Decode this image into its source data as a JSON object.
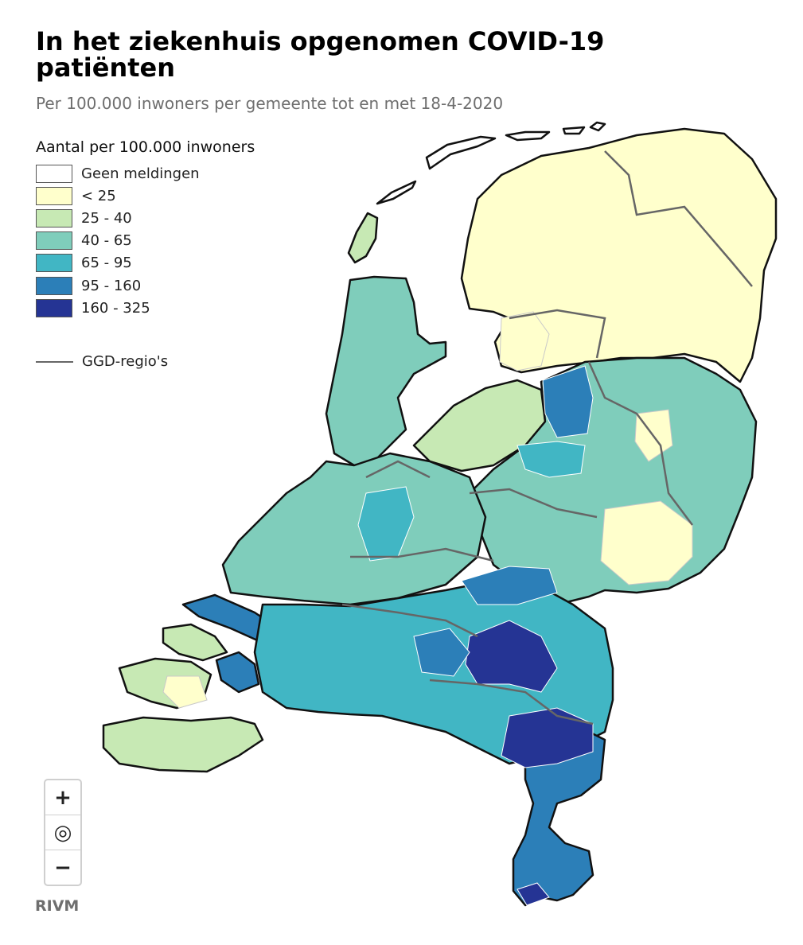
{
  "header": {
    "title": "In het ziekenhuis opgenomen COVID-19 patiënten",
    "subtitle": "Per 100.000 inwoners per gemeente tot en met 18-4-2020"
  },
  "legend": {
    "title": "Aantal per 100.000 inwoners",
    "items": [
      {
        "label": "Geen meldingen",
        "color": "#ffffff"
      },
      {
        "label": "< 25",
        "color": "#ffffcc"
      },
      {
        "label": "25 - 40",
        "color": "#c7e9b4"
      },
      {
        "label": "40 - 65",
        "color": "#7fcdbb"
      },
      {
        "label": "65 - 95",
        "color": "#41b6c4"
      },
      {
        "label": "95 - 160",
        "color": "#2c7fb8"
      },
      {
        "label": "160 - 325",
        "color": "#253494"
      }
    ],
    "ggd_label": "GGD-regio's",
    "ggd_color": "#666666"
  },
  "zoom": {
    "in_icon": "+",
    "reset_icon": "◎",
    "out_icon": "−"
  },
  "credit": "RIVM"
}
